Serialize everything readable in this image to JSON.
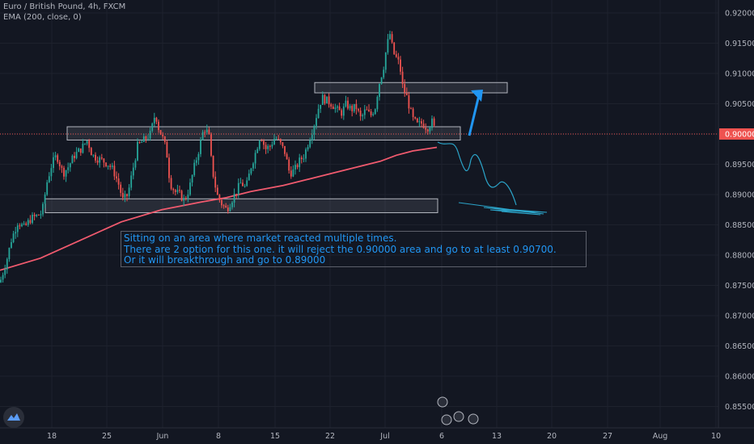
{
  "legend": {
    "symbol": "Euro / British Pound, 4h, FXCM",
    "indicator": "EMA (200, close, 0)"
  },
  "annotation": {
    "lines": [
      "Sitting on an area where market reacted multiple times.",
      "There are 2 option for this one. it will reject the 0.90000 area and  go to at least 0.90700.",
      "Or it will breakthrough and go to 0.89000"
    ]
  },
  "colors": {
    "background": "#131722",
    "bull": "#26a69a",
    "bear": "#ef5350",
    "ema": "#f05a6e",
    "arrow": "#2196f3",
    "path": "#2ba4c9",
    "text": "#2196f3"
  },
  "chart_data": {
    "type": "candlestick",
    "symbol": "EUR/GBP",
    "timeframe": "4h",
    "ylim": [
      0.8535,
      0.9225
    ],
    "y_ticks": [
      "0.92000",
      "0.91500",
      "0.91000",
      "0.90500",
      "0.90000",
      "0.89500",
      "0.89000",
      "0.88500",
      "0.88000",
      "0.87500",
      "0.87000",
      "0.86500",
      "0.86000",
      "0.85500"
    ],
    "y_tick_values": [
      0.92,
      0.915,
      0.91,
      0.905,
      0.9,
      0.895,
      0.89,
      0.885,
      0.88,
      0.875,
      0.87,
      0.865,
      0.86,
      0.855
    ],
    "x_ticks": [
      "18",
      "25",
      "Jun",
      "8",
      "15",
      "22",
      "Jul",
      "6",
      "13",
      "20",
      "27",
      "Aug",
      "10"
    ],
    "current_price": "0.90000",
    "price_path": [
      [
        0,
        0.8755
      ],
      [
        8,
        0.879
      ],
      [
        14,
        0.8825
      ],
      [
        22,
        0.8855
      ],
      [
        30,
        0.8845
      ],
      [
        38,
        0.886
      ],
      [
        46,
        0.8865
      ],
      [
        52,
        0.887
      ],
      [
        58,
        0.892
      ],
      [
        64,
        0.895
      ],
      [
        70,
        0.8965
      ],
      [
        78,
        0.8935
      ],
      [
        84,
        0.8945
      ],
      [
        92,
        0.8965
      ],
      [
        100,
        0.8975
      ],
      [
        108,
        0.899
      ],
      [
        114,
        0.8965
      ],
      [
        120,
        0.896
      ],
      [
        128,
        0.8955
      ],
      [
        134,
        0.895
      ],
      [
        140,
        0.894
      ],
      [
        146,
        0.892
      ],
      [
        152,
        0.889
      ],
      [
        158,
        0.89
      ],
      [
        164,
        0.894
      ],
      [
        170,
        0.898
      ],
      [
        178,
        0.899
      ],
      [
        186,
        0.9
      ],
      [
        192,
        0.9035
      ],
      [
        196,
        0.901
      ],
      [
        202,
        0.899
      ],
      [
        206,
        0.897
      ],
      [
        210,
        0.892
      ],
      [
        216,
        0.8905
      ],
      [
        222,
        0.89
      ],
      [
        228,
        0.889
      ],
      [
        234,
        0.891
      ],
      [
        240,
        0.8945
      ],
      [
        246,
        0.8975
      ],
      [
        252,
        0.901
      ],
      [
        258,
        0.9
      ],
      [
        262,
        0.8945
      ],
      [
        268,
        0.89
      ],
      [
        274,
        0.8885
      ],
      [
        280,
        0.8875
      ],
      [
        286,
        0.889
      ],
      [
        292,
        0.8905
      ],
      [
        298,
        0.892
      ],
      [
        304,
        0.891
      ],
      [
        310,
        0.8945
      ],
      [
        316,
        0.897
      ],
      [
        322,
        0.9
      ],
      [
        328,
        0.8975
      ],
      [
        334,
        0.898
      ],
      [
        340,
        0.8995
      ],
      [
        346,
        0.8985
      ],
      [
        352,
        0.897
      ],
      [
        358,
        0.8935
      ],
      [
        364,
        0.894
      ],
      [
        370,
        0.8955
      ],
      [
        376,
        0.8965
      ],
      [
        382,
        0.899
      ],
      [
        388,
        0.9015
      ],
      [
        394,
        0.9045
      ],
      [
        398,
        0.906
      ],
      [
        404,
        0.9055
      ],
      [
        410,
        0.905
      ],
      [
        416,
        0.904
      ],
      [
        422,
        0.9035
      ],
      [
        428,
        0.905
      ],
      [
        434,
        0.904
      ],
      [
        440,
        0.9045
      ],
      [
        446,
        0.9025
      ],
      [
        452,
        0.904
      ],
      [
        458,
        0.903
      ],
      [
        464,
        0.9045
      ],
      [
        468,
        0.908
      ],
      [
        474,
        0.911
      ],
      [
        478,
        0.9145
      ],
      [
        482,
        0.9165
      ],
      [
        486,
        0.9135
      ],
      [
        490,
        0.9125
      ],
      [
        494,
        0.9115
      ],
      [
        498,
        0.9075
      ],
      [
        502,
        0.9065
      ],
      [
        506,
        0.9045
      ],
      [
        510,
        0.9025
      ],
      [
        516,
        0.9015
      ],
      [
        522,
        0.9018
      ],
      [
        528,
        0.901
      ],
      [
        534,
        0.902
      ],
      [
        538,
        0.9005
      ]
    ],
    "ema200": [
      [
        0,
        0.8775
      ],
      [
        50,
        0.8795
      ],
      [
        100,
        0.8825
      ],
      [
        150,
        0.8855
      ],
      [
        200,
        0.8875
      ],
      [
        250,
        0.8888
      ],
      [
        280,
        0.8895
      ],
      [
        310,
        0.8905
      ],
      [
        350,
        0.8915
      ],
      [
        380,
        0.8925
      ],
      [
        410,
        0.8935
      ],
      [
        440,
        0.8945
      ],
      [
        470,
        0.8955
      ],
      [
        490,
        0.8965
      ],
      [
        510,
        0.8972
      ],
      [
        540,
        0.8978
      ]
    ],
    "zones": [
      {
        "from": 0.899,
        "to": 0.9012,
        "x_start": 83,
        "x_end": 569
      },
      {
        "from": 0.887,
        "to": 0.8893,
        "x_start": 56,
        "x_end": 541
      },
      {
        "from": 0.9068,
        "to": 0.9085,
        "x_start": 389,
        "x_end": 627
      }
    ]
  }
}
